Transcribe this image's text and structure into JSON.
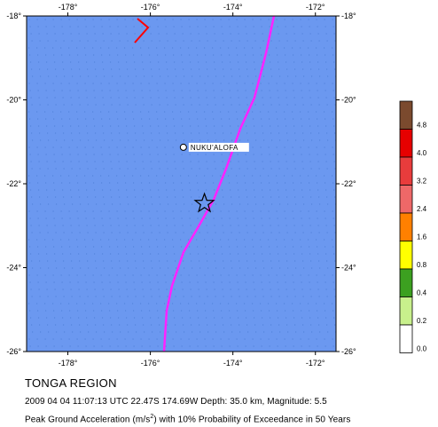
{
  "region_title": "TONGA REGION",
  "event_info": "2009 04 04 11:07:13 UTC 22.47S 174.69W Depth: 35.0 km, Magnitude: 5.5",
  "caption": {
    "prefix": "Peak Ground Acceleration (m/s",
    "sup": "2",
    "suffix": ") with 10% Probability of Exceedance in 50 Years"
  },
  "map": {
    "lon_ticks": [
      "-178°",
      "-176°",
      "-174°",
      "-172°"
    ],
    "lat_ticks": [
      "-18°",
      "-20°",
      "-22°",
      "-24°",
      "-26°"
    ],
    "lon_range": [
      -179,
      -171.5
    ],
    "lat_range": [
      -26,
      -18
    ],
    "ocean_color": "#6b98f0",
    "city": {
      "name": "NUKU'ALOFA",
      "lon": -175.2,
      "lat": -21.13
    },
    "epicenter": {
      "lon": -174.69,
      "lat": -22.47
    },
    "plate_boundary_color": "#ff22ff",
    "fault_color": "#ff0000"
  },
  "legend": {
    "labels": [
      "4.8",
      "4.0",
      "3.2",
      "2.4",
      "1.6",
      "0.8",
      "0.4",
      "0.2",
      "0.0"
    ],
    "colors": [
      "#7b4a2e",
      "#e60000",
      "#e83c3c",
      "#ee6868",
      "#ff8000",
      "#ffff00",
      "#3ca020",
      "#c8f08c",
      "#ffffff"
    ]
  }
}
